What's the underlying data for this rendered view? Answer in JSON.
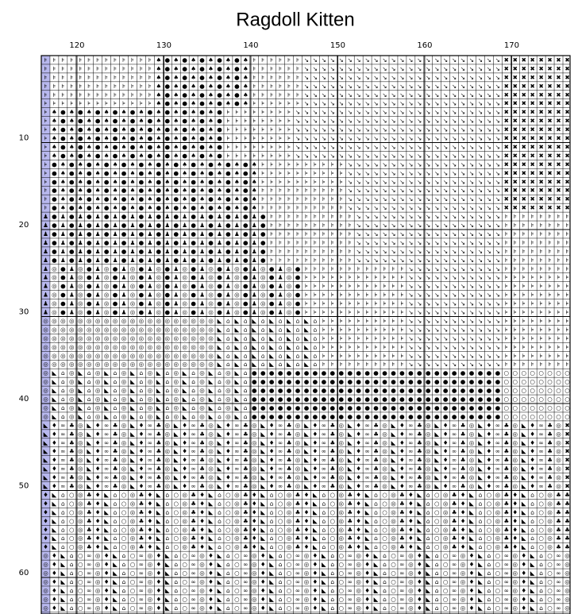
{
  "title": "Ragdoll Kitten",
  "column_labels": [
    120,
    130,
    140,
    150,
    160,
    170
  ],
  "row_labels": [
    10,
    20,
    30,
    40,
    50,
    60
  ],
  "cells": [
    "⊧⊧⊧⊧⊧⊧⊧⊧⊧⊧⊧⊧⊧♠●♠●♠●♠●♠●♠⊧⊧⊧⊧⊧⊧↘↘↘↘↘↘↘↘↘↘↘↘↘↘↘↘↘↘↘↘↘↘↘✖✖✖✖✖✖✖✖",
    "⊧⊧⊧⊧⊧⊧⊧⊧⊧⊧⊧⊧⊧♠●♠●♠●♠●♠●♠⊧⊧⊧⊧⊧⊧↘↘↘↘↘↘↘↘↘↘↘↘↘↘↘↘↘↘↘↘↘↘↘✖✖✖✖✖✖✖✖",
    "⊧⊧⊧⊧⊧⊧⊧⊧⊧⊧⊧⊧⊧♠●♠●♠●♠●♠●♠⊧⊧⊧⊧⊧⊧↘↘↘↘↘↘↘↘↘↘↘↘↘↘↘↘↘↘↘↘↘↘↘✖✖✖✖✖✖✖✖",
    "⊧⊧⊧⊧⊧⊧⊧⊧⊧⊧⊧⊧⊧♠●♠●♠●♠●♠●♠⊧⊧⊧⊧⊧⊧↘↘↘↘↘↘↘↘↘↘↘↘↘↘↘↘↘↘↘↘↘↘↘✖✖✖✖✖✖✖✖",
    "⊧⊧⊧⊧⊧⊧⊧⊧⊧⊧⊧⊧⊧♠●♠●♠●♠●♠●♠⊧⊧⊧⊧⊧⊧↘↘↘↘↘↘↘↘↘↘↘↘↘↘↘↘↘↘↘↘↘↘↘✖✖✖✖✖✖✖✖",
    "⊧⊧⊧⊧⊧⊧⊧⊧⊧⊧⊧⊧⊧♠●♠●♠●♠●♠●♠⊧⊧⊧⊧⊧⊧↘↘↘↘↘↘↘↘↘↘↘↘↘↘↘↘↘↘↘↘↘↘↘✖✖✖✖✖✖✖✖",
    "⊧♠●♠●♠●♠●♠●♠●♠●♠●♠●♠●⊧⊧⊧⊧⊧⊧⊧⊧↘↘↘↘↘↘↘↘↘↘↘↘↘↘↘↘↘↘↘↘↘↘↘↘✖✖✖✖✖✖✖✖",
    "⊧♠●♠●♠●♠●♠●♠●♠●♠●♠●♠●⊧⊧⊧⊧⊧⊧⊧⊧↘↘↘↘↘↘↘↘↘↘↘↘↘↘↘↘↘↘↘↘↘↘↘↘✖✖✖✖✖✖✖✖",
    "⊧♠●♠●♠●♠●♠●♠●♠●♠●♠●♠●⊧⊧⊧⊧⊧⊧⊧⊧↘↘↘↘↘↘↘↘↘↘↘↘↘↘↘↘↘↘↘↘↘↘↘↘✖✖✖✖✖✖✖✖",
    "⊧♠●♠●♠●♠●♠●♠●♠●♠●♠●♠●⊧⊧⊧⊧⊧⊧⊧⊧↘↘↘↘↘↘↘↘↘↘↘↘↘↘↘↘↘↘↘↘↘↘↘↘✖✖✖✖✖✖✖✖",
    "⊧♠●♠●♠●♠●♠●♠●♠●♠●♠●♠●⊧⊧⊧⊧⊧⊧⊧⊧↘↘↘↘↘↘↘↘↘↘↘↘↘↘↘↘↘↘↘↘↘↘↘↘✖✖✖✖✖✖✖✖",
    "⊧♠●♠●♠●♠●♠●♠●♠●♠●♠●♠●⊧⊧⊧⊧⊧⊧⊧⊧↘↘↘↘↘↘↘↘↘↘↘↘↘↘↘↘↘↘↘↘↘↘↘↘✖✖✖✖✖✖✖✖",
    "⊧●♠●♠●♠●♠●♠●♠●♠●♠●♠●♠●♠●♠⊧⊧⊧⊧⊧⊧⊧⊧⊧⊧↘↘↘↘↘↘↘↘↘↘↘↘↘↘↘↘↘↘✖✖✖✖✖✖✖✖",
    "⊧●♠●♠●♠●♠●♠●♠●♠●♠●♠●♠●♠●♠⊧⊧⊧⊧⊧⊧⊧⊧⊧⊧↘↘↘↘↘↘↘↘↘↘↘↘↘↘↘↘↘↘✖✖✖✖✖✖✖✖",
    "⊧●♠●♠●♠●♠●♠●♠●♠●♠●♠●♠●♠●♠⊧⊧⊧⊧⊧⊧⊧⊧⊧⊧↘↘↘↘↘↘↘↘↘↘↘↘↘↘↘↘↘↘✖✖✖✖✖✖✖✖",
    "⊧●♠●♠●♠●♠●♠●♠●♠●♠●♠●♠●♠●♠⊧⊧⊧⊧⊧⊧⊧⊧⊧⊧↘↘↘↘↘↘↘↘↘↘↘↘↘↘↘↘↘↘✖✖✖✖✖✖✖✖",
    "⊧●♠●♠●♠●♠●♠●♠●♠●♠●♠●♠●♠●♠⊧⊧⊧⊧⊧⊧⊧⊧⊧⊧↘↘↘↘↘↘↘↘↘↘↘↘↘↘↘↘↘↘✖✖✖✖✖✖✖✖",
    "⊧●♠●♠●♠●♠●♠●♠●♠●♠●♠●♠●♠●♠⊧⊧⊧⊧⊧⊧⊧⊧⊧⊧↘↘↘↘↘↘↘↘↘↘↘↘↘↘↘↘↘↘✖✖✖✖✖✖✖✖",
    "♟●♟●♟●♟●♟●♟●♟●♟●♟●♟●♟●♟●♟●⊧⊧⊧⊧⊧⊧⊧⊧⊧⊧↘↘↘↘↘↘↘↘↘↘↘↘↘↘↘↘↘⊧⊧⊧⊧⊧⊧⊧⊧",
    "♟●♟●♟●♟●♟●♟●♟●♟●♟●♟●♟●♟●♟●⊧⊧⊧⊧⊧⊧⊧⊧⊧⊧↘↘↘↘↘↘↘↘↘↘↘↘↘↘↘↘↘⊧⊧⊧⊧⊧⊧⊧⊧",
    "♟●♟●♟●♟●♟●♟●♟●♟●♟●♟●♟●♟●♟●⊧⊧⊧⊧⊧⊧⊧⊧⊧⊧↘↘↘↘↘↘↘↘↘↘↘↘↘↘↘↘↘⊧⊧⊧⊧⊧⊧⊧⊧",
    "♟●♟●♟●♟●♟●♟●♟●♟●♟●♟●♟●♟●♟●⊧⊧⊧⊧⊧⊧⊧⊧⊧⊧↘↘↘↘↘↘↘↘↘↘↘↘↘↘↘↘↘⊧⊧⊧⊧⊧⊧⊧⊧",
    "♟●♟●♟●♟●♟●♟●♟●♟●♟●♟●♟●♟●♟●⊧⊧⊧⊧⊧⊧⊧⊧⊧⊧↘↘↘↘↘↘↘↘↘↘↘↘↘↘↘↘↘⊧⊧⊧⊧⊧⊧⊧⊧",
    "♟●♟●♟●♟●♟●♟●♟●♟●♟●♟●♟●♟●♟●⊧⊧⊧⊧⊧⊧⊧⊧⊧⊧↘↘↘↘↘↘↘↘↘↘↘↘↘↘↘↘↘⊧⊧⊧⊧⊧⊧⊧⊧",
    "♟◎●♟◎●♟◎●♟◎●♟◎●♟◎●♟◎●♟◎●♟◎●♟◎●⊧⊧⊧⊧⊧⊧⊧⊧⊧⊧⊧⊧↘↘↘↘↘↘↘↘↘↘↘⊧⊧⊧⊧⊧⊧⊧⊧",
    "♟◎●♟◎●♟◎●♟◎●♟◎●♟◎●♟◎●♟◎●♟◎●♟◎●⊧⊧⊧⊧⊧⊧⊧⊧⊧⊧⊧⊧↘↘↘↘↘↘↘↘↘↘↘⊧⊧⊧⊧⊧⊧⊧⊧",
    "♟◎●♟◎●♟◎●♟◎●♟◎●♟◎●♟◎●♟◎●♟◎●♟◎●⊧⊧⊧⊧⊧⊧⊧⊧⊧⊧⊧⊧↘↘↘↘↘↘↘↘↘↘↘⊧⊧⊧⊧⊧⊧⊧⊧",
    "♟◎●♟◎●♟◎●♟◎●♟◎●♟◎●♟◎●♟◎●♟◎●♟◎●⊧⊧⊧⊧⊧⊧⊧⊧⊧⊧⊧⊧↘↘↘↘↘↘↘↘↘↘↘⊧⊧⊧⊧⊧⊧⊧⊧",
    "♟◎●♟◎●♟◎●♟◎●♟◎●♟◎●♟◎●♟◎●♟◎●♟◎●⊧⊧⊧⊧⊧⊧⊧⊧⊧⊧⊧⊧↘↘↘↘↘↘↘↘↘↘↘⊧⊧⊧⊧⊧⊧⊧⊧",
    "♟◎●♟◎●♟◎●♟◎●♟◎●♟◎●♟◎●♟◎●♟◎●♟◎●⊧⊧⊧⊧⊧⊧⊧⊧⊧⊧⊧⊧↘↘↘↘↘↘↘↘↘↘↘⊧⊧⊧⊧⊧⊧⊧⊧",
    "◎◎◎◎◎◎◎◎◎◎◎◎◎◎◎◎◎◎◎◎◣⌂◣⌂◣⌂◣⌂◣⌂◣⌂⊧⊧⊧⊧⊧⊧⊧⊧⊧⊧↘↘↘↘↘↘↘↘↘↘↘⊧⊧⊧⊧⊧⊧⊧⊧",
    "◎◎◎◎◎◎◎◎◎◎◎◎◎◎◎◎◎◎◎◎◣⌂◣⌂◣⌂◣⌂◣⌂◣⌂⊧⊧⊧⊧⊧⊧⊧⊧⊧⊧↘↘↘↘↘↘↘↘↘↘↘⊧⊧⊧⊧⊧⊧⊧⊧",
    "◎◎◎◎◎◎◎◎◎◎◎◎◎◎◎◎◎◎◎◎◣⌂◣⌂◣⌂◣⌂◣⌂◣⌂⊧⊧⊧⊧⊧⊧⊧⊧⊧⊧↘↘↘↘↘↘↘↘↘↘↘⊧⊧⊧⊧⊧⊧⊧⊧",
    "◎◎◎◎◎◎◎◎◎◎◎◎◎◎◎◎◎◎◎◎◣⌂◣⌂◣⌂◣⌂◣⌂◣⌂⊧⊧⊧⊧⊧⊧⊧⊧⊧⊧↘↘↘↘↘↘↘↘↘↘↘⊧⊧⊧⊧⊧⊧⊧⊧",
    "◎◎◎◎◎◎◎◎◎◎◎◎◎◎◎◎◎◎◎◎◣⌂◣⌂◣⌂◣⌂◣⌂◣⌂⊧⊧⊧⊧⊧⊧⊧⊧⊧⊧↘↘↘↘↘↘↘↘↘↘↘⊧⊧⊧⊧⊧⊧⊧⊧",
    "◎◎◎◎◎◎◎◎◎◎◎◎◎◎◎◎◎◎◎◎◣⌂◣⌂◣⌂◣⌂◣⌂◣⌂⊧⊧⊧⊧⊧⊧⊧⊧⊧⊧↘↘↘↘↘↘↘↘↘↘↘⊧⊧⊧⊧⊧⊧⊧⊧",
    "◎◣⌂◎◣⌂◎◣⌂◎◣⌂◎◣⌂◎◣⌂◎◣⌂◎◣⌂●●●●●●●●●●●●●●●●●●●●●●●●●●●●●○○○○○○○○",
    "◎◣⌂◎◣⌂◎◣⌂◎◣⌂◎◣⌂◎◣⌂◎◣⌂◎◣⌂●●●●●●●●●●●●●●●●●●●●●●●●●●●●●○○○○○○○○",
    "◎◣⌂◎◣⌂◎◣⌂◎◣⌂◎◣⌂◎◣⌂◎◣⌂◎◣⌂●●●●●●●●●●●●●●●●●●●●●●●●●●●●●○○○○○○○○",
    "◎◣⌂◎◣⌂◎◣⌂◎◣⌂◎◣⌂◎◣⌂◎◣⌂◎◣⌂●●●●●●●●●●●●●●●●●●●●●●●●●●●●●○○○○○○○○",
    "◎◣⌂◎◣⌂◎◣⌂◎◣⌂◎◣⌂◎◣⌂◎◣⌂◎◣⌂●●●●●●●●●●●●●●●●●●●●●●●●●●●●●○○○○○○○○",
    "◎◣⌂◎◣⌂◎◣⌂◎◣⌂◎◣⌂◎◣⌂◎◣⌂◎◣⌂●●●●●●●●●●●●●●●●●●●●●●●●●●●●●○○○○○○○○",
    "◣♦∞♣◎◣♦∞♣◎◣♦∞♣◎◣♦∞♣◎◣♦∞♣◎◣♦∞♣◎◣♦∞♣◎◣♦∞♣◎◣♦∞♣◎◣♦∞♣◎◣♦∞♣◎◣♦∞♣◎✖",
    "◣♦∞♣◎◣♦∞♣◎◣♦∞♣◎◣♦∞♣◎◣♦∞♣◎◣♦∞♣◎◣♦∞♣◎◣♦∞♣◎◣♦∞♣◎◣♦∞♣◎◣♦∞♣◎◣♦∞♣◎✖",
    "◣♦∞♣◎◣♦∞♣◎◣♦∞♣◎◣♦∞♣◎◣♦∞♣◎◣♦∞♣◎◣♦∞♣◎◣♦∞♣◎◣♦∞♣◎◣♦∞♣◎◣♦∞♣◎◣♦∞♣◎✖",
    "◣♦∞♣◎◣♦∞♣◎◣♦∞♣◎◣♦∞♣◎◣♦∞♣◎◣♦∞♣◎◣♦∞♣◎◣♦∞♣◎◣♦∞♣◎◣♦∞♣◎◣♦∞♣◎◣♦∞♣◎✖",
    "◣♦∞♣◎◣♦∞♣◎◣♦∞♣◎◣♦∞♣◎◣♦∞♣◎◣♦∞♣◎◣♦∞♣◎◣♦∞♣◎◣♦∞♣◎◣♦∞♣◎◣♦∞♣◎◣♦∞♣◎✖",
    "◣♦∞♣◎◣♦∞♣◎◣♦∞♣◎◣♦∞♣◎◣♦∞♣◎◣♦∞♣◎◣♦∞♣◎◣♦∞♣◎◣♦∞♣◎◣♦∞♣◎◣♦∞♣◎◣♦∞♣◎✖",
    "◣♦∞♣◎◣♦∞♣◎◣♦∞♣◎◣♦∞♣◎◣♦∞♣◎◣♦∞♣◎◣♦∞♣◎◣♦∞♣◎◣♦∞♣◎◣♦∞♣◎◣♦∞♣◎◣♦∞♣◎✖",
    "◣♦∞♣◎◣♦∞♣◎◣♦∞♣◎◣♦∞♣◎◣♦∞♣◎◣♦∞♣◎◣♦∞♣◎◣♦∞♣◎◣♦∞♣◎◣♦∞♣◎◣♦∞♣◎◣♦∞♣◎✖",
    "♦◣⌂○◎♣♦◣⌂○◎♣♦◣⌂○◎♣♦◣⌂○◎♣♦◣⌂○◎♣♦◣⌂○◎♣♦◣⌂○◎♣♦◣⌂○◎♣♦◣⌂○◎♣♦◣⌂○◎♣♣",
    "♦◣⌂○◎♣♦◣⌂○◎♣♦◣⌂○◎♣♦◣⌂○◎♣♦◣⌂○◎♣♦◣⌂○◎♣♦◣⌂○◎♣♦◣⌂○◎♣♦◣⌂○◎♣♦◣⌂○◎♣♣",
    "♦◣⌂○◎♣♦◣⌂○◎♣♦◣⌂○◎♣♦◣⌂○◎♣♦◣⌂○◎♣♦◣⌂○◎♣♦◣⌂○◎♣♦◣⌂○◎♣♦◣⌂○◎♣♦◣⌂○◎♣♣",
    "♦◣⌂○◎♣♦◣⌂○◎♣♦◣⌂○◎♣♦◣⌂○◎♣♦◣⌂○◎♣♦◣⌂○◎♣♦◣⌂○◎♣♦◣⌂○◎♣♦◣⌂○◎♣♦◣⌂○◎♣♣",
    "♦◣⌂○◎♣♦◣⌂○◎♣♦◣⌂○◎♣♦◣⌂○◎♣♦◣⌂○◎♣♦◣⌂○◎♣♦◣⌂○◎♣♦◣⌂○◎♣♦◣⌂○◎♣♦◣⌂○◎♣♣",
    "♦◣⌂○◎♣♦◣⌂○◎♣♦◣⌂○◎♣♦◣⌂○◎♣♦◣⌂○◎♣♦◣⌂○◎♣♦◣⌂○◎♣♦◣⌂○◎♣♦◣⌂○◎♣♦◣⌂○◎♣♣",
    "♦◣⌂○◎♣♦◣⌂○◎♣♦◣⌂○◎♣♦◣⌂○◎♣♦◣⌂○◎♣♦◣⌂○◎♣♦◣⌂○◎♣♦◣⌂○◎♣♦◣⌂○◎♣♦◣⌂○◎♣♣",
    "◎♦◣⌂○∞◎♦◣⌂○∞◎♦◣⌂○∞◎♦◣⌂○∞◎♦◣⌂○∞◎♦◣⌂○∞◎♦◣⌂○∞◎♦◣⌂○∞◎♦◣⌂○∞◎♦◣⌂○∞◎",
    "◎♦◣⌂○∞◎♦◣⌂○∞◎♦◣⌂○∞◎♦◣⌂○∞◎♦◣⌂○∞◎♦◣⌂○∞◎♦◣⌂○∞◎♦◣⌂○∞◎♦◣⌂○∞◎♦◣⌂○∞◎",
    "◎♦◣⌂○∞◎♦◣⌂○∞◎♦◣⌂○∞◎♦◣⌂○∞◎♦◣⌂○∞◎♦◣⌂○∞◎♦◣⌂○∞◎♦◣⌂○∞◎♦◣⌂○∞◎♦◣⌂○∞◎",
    "◎♦◣⌂○∞◎♦◣⌂○∞◎♦◣⌂○∞◎♦◣⌂○∞◎♦◣⌂○∞◎♦◣⌂○∞◎♦◣⌂○∞◎♦◣⌂○∞◎♦◣⌂○∞◎♦◣⌂○∞◎",
    "◎♦◣⌂○∞◎♦◣⌂○∞◎♦◣⌂○∞◎♦◣⌂○∞◎♦◣⌂○∞◎♦◣⌂○∞◎♦◣⌂○∞◎♦◣⌂○∞◎♦◣⌂○∞◎♦◣⌂○∞◎",
    "◎♦◣⌂○∞◎♦◣⌂○∞◎♦◣⌂○∞◎♦◣⌂○∞◎♦◣⌂○∞◎♦◣⌂○∞◎♦◣⌂○∞◎♦◣⌂○∞◎♦◣⌂○∞◎♦◣⌂○∞◎",
    "◎♦◣⌂○∞◎♦◣⌂○∞◎♦◣⌂○∞◎♦◣⌂○∞◎♦◣⌂○∞◎♦◣⌂○∞◎♦◣⌂○∞◎♦◣⌂○∞◎♦◣⌂○∞◎♦◣⌂○∞◎"
  ]
}
